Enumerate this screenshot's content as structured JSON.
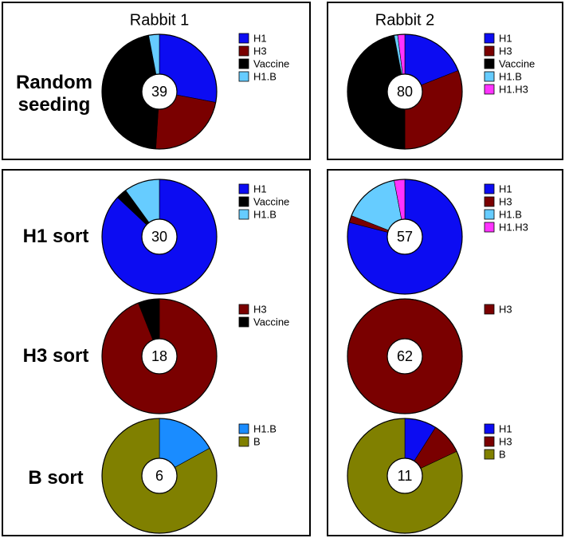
{
  "column_titles": [
    "Rabbit 1",
    "Rabbit 2"
  ],
  "row_labels": [
    "Random seeding",
    "H1 sort",
    "H3 sort",
    "B sort"
  ],
  "chart_data": [
    {
      "type": "pie",
      "center_label": 39,
      "categories": [
        "H1",
        "H3",
        "Vaccine",
        "H1.B"
      ],
      "values": [
        28,
        23,
        46,
        3
      ],
      "colors": [
        "#0c0cf2",
        "#7a0000",
        "#000000",
        "#66ccff"
      ]
    },
    {
      "type": "pie",
      "center_label": 80,
      "categories": [
        "H1",
        "H3",
        "Vaccine",
        "H1.B",
        "H1.H3"
      ],
      "values": [
        19,
        31,
        47,
        1,
        2
      ],
      "colors": [
        "#0c0cf2",
        "#7a0000",
        "#000000",
        "#66ccff",
        "#ff33ff"
      ]
    },
    {
      "type": "pie",
      "center_label": 30,
      "categories": [
        "H1",
        "Vaccine",
        "H1.B"
      ],
      "values": [
        87,
        3,
        10
      ],
      "colors": [
        "#0c0cf2",
        "#000000",
        "#66ccff"
      ]
    },
    {
      "type": "pie",
      "center_label": 57,
      "categories": [
        "H1",
        "H3",
        "H1.B",
        "H1.H3"
      ],
      "values": [
        79,
        2,
        16,
        3
      ],
      "colors": [
        "#0c0cf2",
        "#7a0000",
        "#66ccff",
        "#ff33ff"
      ]
    },
    {
      "type": "pie",
      "center_label": 18,
      "categories": [
        "H3",
        "Vaccine"
      ],
      "values": [
        94,
        6
      ],
      "colors": [
        "#7a0000",
        "#000000"
      ]
    },
    {
      "type": "pie",
      "center_label": 62,
      "categories": [
        "H3"
      ],
      "values": [
        100
      ],
      "colors": [
        "#7a0000"
      ]
    },
    {
      "type": "pie",
      "center_label": 6,
      "categories": [
        "H1.B",
        "B"
      ],
      "values": [
        17,
        83
      ],
      "colors": [
        "#1a8cff",
        "#808000"
      ]
    },
    {
      "type": "pie",
      "center_label": 11,
      "categories": [
        "H1",
        "H3",
        "B"
      ],
      "values": [
        9,
        9,
        82
      ],
      "colors": [
        "#0c0cf2",
        "#7a0000",
        "#808000"
      ]
    }
  ]
}
